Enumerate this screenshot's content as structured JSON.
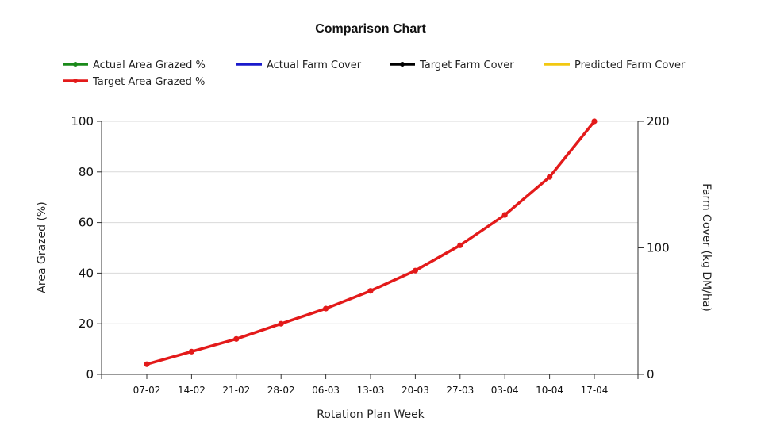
{
  "chart_data": {
    "type": "line",
    "title": "Comparison Chart",
    "xlabel": "Rotation Plan Week",
    "ylabel": "Area Grazed (%)",
    "y2label": "Farm Cover (kg DM/ha)",
    "categories": [
      "07-02",
      "14-02",
      "21-02",
      "28-02",
      "06-03",
      "13-03",
      "20-03",
      "27-03",
      "03-04",
      "10-04",
      "17-04"
    ],
    "ylim": [
      0,
      100
    ],
    "yticks": [
      0,
      20,
      40,
      60,
      80,
      100
    ],
    "y2lim": [
      0,
      200
    ],
    "y2ticks": [
      0,
      100,
      200
    ],
    "grid": true,
    "legend_position": "top",
    "legend": [
      {
        "name": "Actual Area Grazed %",
        "color": "#1a8a1a",
        "marker": true
      },
      {
        "name": "Actual Farm Cover",
        "color": "#1a1acc",
        "marker": false
      },
      {
        "name": "Target Farm Cover",
        "color": "#000000",
        "marker": true
      },
      {
        "name": "Predicted Farm Cover",
        "color": "#f2c811",
        "marker": false
      },
      {
        "name": "Target Area Grazed %",
        "color": "#e31a1a",
        "marker": true
      }
    ],
    "series": [
      {
        "name": "Target Area Grazed %",
        "color": "#e31a1a",
        "axis": "left",
        "values": [
          4,
          9,
          14,
          20,
          26,
          33,
          41,
          51,
          63,
          78,
          100
        ]
      }
    ]
  }
}
